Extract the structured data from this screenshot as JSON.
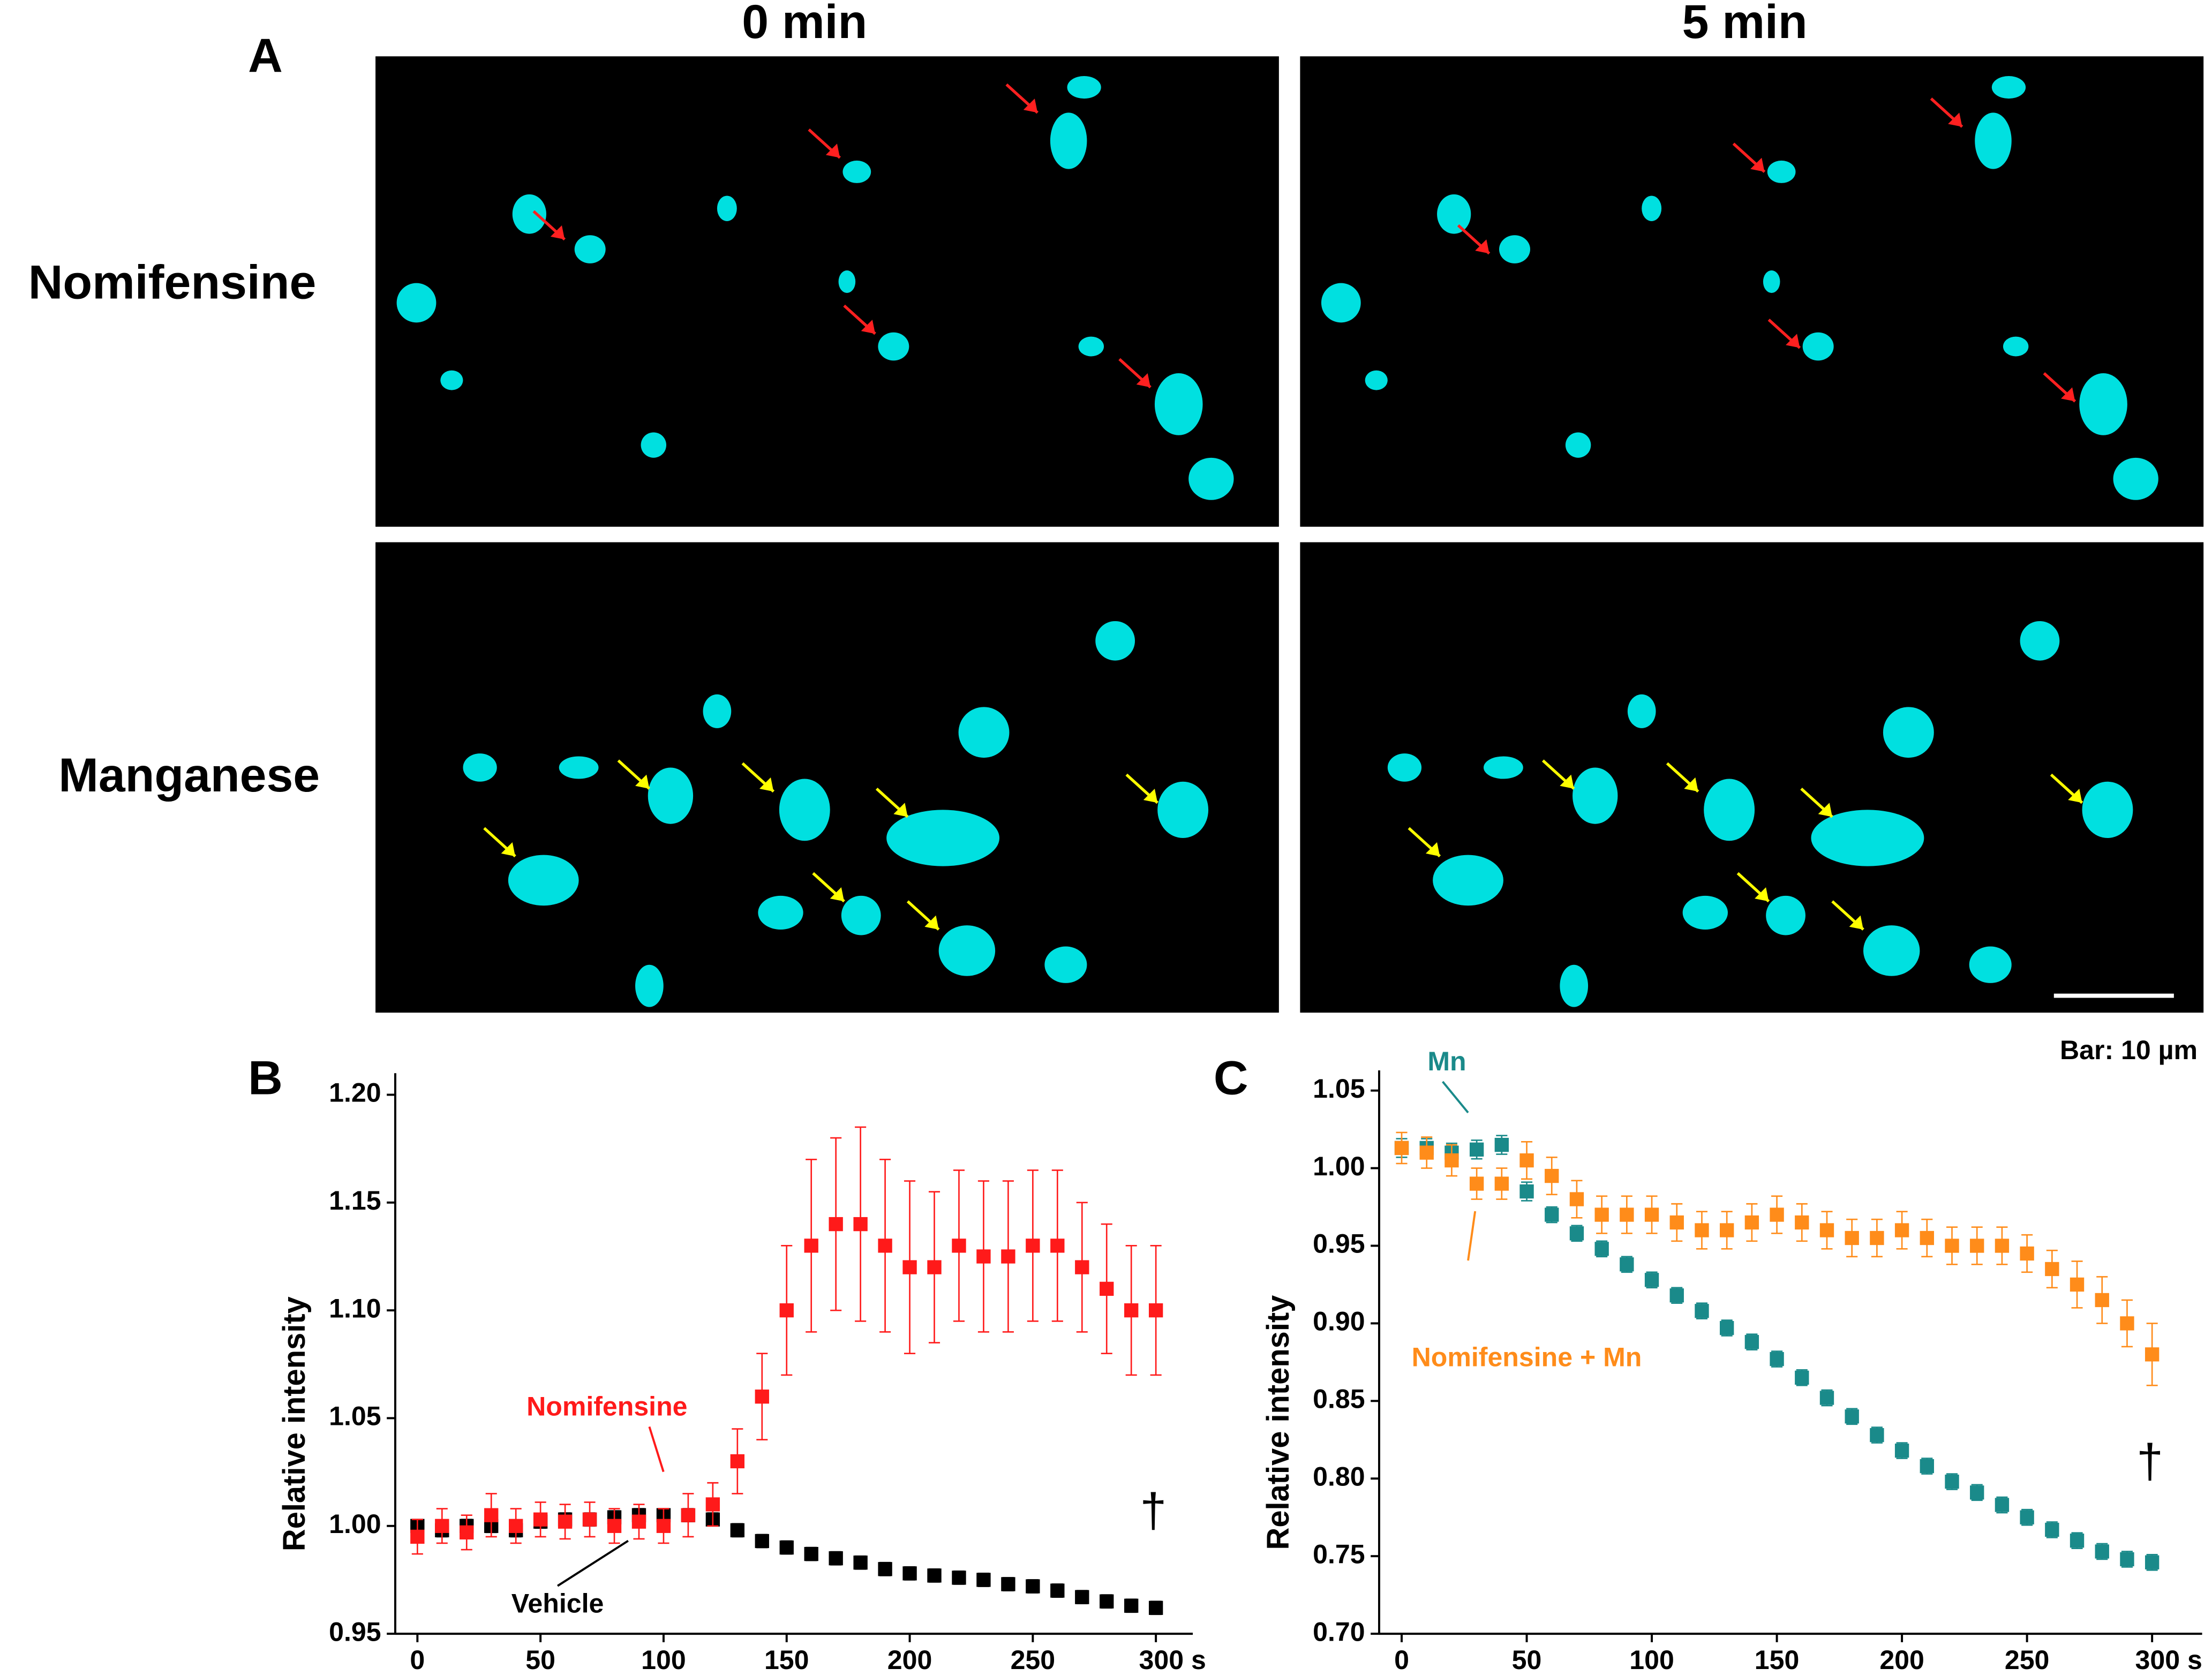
{
  "panel_a": {
    "label": "A",
    "columns": [
      "0 min",
      "5 min"
    ],
    "rows": [
      "Nomifensine",
      "Manganese"
    ],
    "scale_bar": "Bar: 10 µm"
  },
  "chart_data": [
    {
      "type": "scatter",
      "panel_label": "B",
      "y_label": "Relative intensity",
      "xlim": [
        -9,
        315
      ],
      "ylim": [
        0.95,
        1.21
      ],
      "xticks": [
        0,
        50,
        100,
        150,
        200,
        250,
        {
          "value": 300,
          "label": "300 s"
        }
      ],
      "yticks": [
        0.95,
        {
          "value": 1,
          "label": "1.00"
        },
        1.05,
        {
          "value": 1.1,
          "label": "1.10"
        },
        1.15,
        {
          "value": 1.2,
          "label": "1.20"
        }
      ],
      "x": [
        0,
        10,
        20,
        30,
        40,
        50,
        60,
        70,
        80,
        90,
        100,
        110,
        120,
        130,
        140,
        150,
        160,
        170,
        180,
        190,
        200,
        210,
        220,
        230,
        240,
        250,
        260,
        270,
        280,
        290,
        300
      ],
      "series": [
        {
          "name": "Vehicle",
          "color": "#000000",
          "values": [
            1.0,
            0.998,
            1.0,
            1.0,
            0.998,
            1.002,
            1.003,
            1.003,
            1.004,
            1.005,
            1.005,
            1.005,
            1.003,
            0.998,
            0.993,
            0.99,
            0.987,
            0.985,
            0.983,
            0.98,
            0.978,
            0.977,
            0.976,
            0.975,
            0.973,
            0.972,
            0.97,
            0.967,
            0.965,
            0.963,
            0.962
          ],
          "errors": [
            0.003,
            0.003,
            0.003,
            0.003,
            0.003,
            0.003,
            0.003,
            0.003,
            0.003,
            0.003,
            0.003,
            0.003,
            0.003,
            0.003,
            0.003,
            0.003,
            0.003,
            0.003,
            0.003,
            0.003,
            0.003,
            0.003,
            0.003,
            0.003,
            0.003,
            0.003,
            0.003,
            0.003,
            0.003,
            0.003,
            0.003
          ]
        },
        {
          "name": "Nomifensine",
          "color": "#ff1a1a",
          "values": [
            0.995,
            1.0,
            0.997,
            1.005,
            1.0,
            1.003,
            1.002,
            1.003,
            1.0,
            1.002,
            1.0,
            1.005,
            1.01,
            1.03,
            1.06,
            1.1,
            1.13,
            1.14,
            1.14,
            1.13,
            1.12,
            1.12,
            1.13,
            1.125,
            1.125,
            1.13,
            1.13,
            1.12,
            1.11,
            1.1,
            1.1
          ],
          "errors": [
            0.008,
            0.008,
            0.008,
            0.01,
            0.008,
            0.008,
            0.008,
            0.008,
            0.008,
            0.008,
            0.008,
            0.01,
            0.01,
            0.015,
            0.02,
            0.03,
            0.04,
            0.04,
            0.045,
            0.04,
            0.04,
            0.035,
            0.035,
            0.035,
            0.035,
            0.035,
            0.035,
            0.03,
            0.03,
            0.03,
            0.03
          ]
        }
      ],
      "annotations": [
        "†"
      ]
    },
    {
      "type": "scatter",
      "panel_label": "C",
      "y_label": "Relative intensity",
      "xlim": [
        -9,
        320
      ],
      "ylim": [
        0.7,
        1.063
      ],
      "xticks": [
        0,
        50,
        100,
        150,
        200,
        250,
        {
          "value": 300,
          "label": "300 s"
        }
      ],
      "yticks": [
        {
          "value": 0.7,
          "label": "0.70"
        },
        0.75,
        {
          "value": 0.8,
          "label": "0.80"
        },
        0.85,
        {
          "value": 0.9,
          "label": "0.90"
        },
        0.95,
        {
          "value": 1,
          "label": "1.00"
        },
        1.05
      ],
      "x": [
        0,
        10,
        20,
        30,
        40,
        50,
        60,
        70,
        80,
        90,
        100,
        110,
        120,
        130,
        140,
        150,
        160,
        170,
        180,
        190,
        200,
        210,
        220,
        230,
        240,
        250,
        260,
        270,
        280,
        290,
        300
      ],
      "series": [
        {
          "name": "Mn",
          "color": "#1a8a8a",
          "values": [
            1.013,
            1.013,
            1.01,
            1.012,
            1.015,
            0.985,
            0.97,
            0.958,
            0.948,
            0.938,
            0.928,
            0.918,
            0.908,
            0.897,
            0.888,
            0.877,
            0.865,
            0.852,
            0.84,
            0.828,
            0.818,
            0.808,
            0.798,
            0.791,
            0.783,
            0.775,
            0.767,
            0.76,
            0.753,
            0.748,
            0.746
          ],
          "errors": [
            0.006,
            0.006,
            0.006,
            0.006,
            0.006,
            0.006,
            0.005,
            0.005,
            0.005,
            0.005,
            0.005,
            0.005,
            0.005,
            0.005,
            0.005,
            0.005,
            0.005,
            0.005,
            0.005,
            0.005,
            0.005,
            0.005,
            0.005,
            0.005,
            0.005,
            0.005,
            0.005,
            0.005,
            0.005,
            0.005,
            0.005
          ]
        },
        {
          "name": "Nomifensine + Mn",
          "color": "#ff8c1a",
          "values": [
            1.013,
            1.01,
            1.005,
            0.99,
            0.99,
            1.005,
            0.995,
            0.98,
            0.97,
            0.97,
            0.97,
            0.965,
            0.96,
            0.96,
            0.965,
            0.97,
            0.965,
            0.96,
            0.955,
            0.955,
            0.96,
            0.955,
            0.95,
            0.95,
            0.95,
            0.945,
            0.935,
            0.925,
            0.915,
            0.9,
            0.88
          ],
          "errors": [
            0.01,
            0.01,
            0.01,
            0.01,
            0.01,
            0.012,
            0.012,
            0.012,
            0.012,
            0.012,
            0.012,
            0.012,
            0.012,
            0.012,
            0.012,
            0.012,
            0.012,
            0.012,
            0.012,
            0.012,
            0.012,
            0.012,
            0.012,
            0.012,
            0.012,
            0.012,
            0.012,
            0.015,
            0.015,
            0.015,
            0.02
          ]
        }
      ],
      "annotations": [
        "†"
      ]
    }
  ]
}
